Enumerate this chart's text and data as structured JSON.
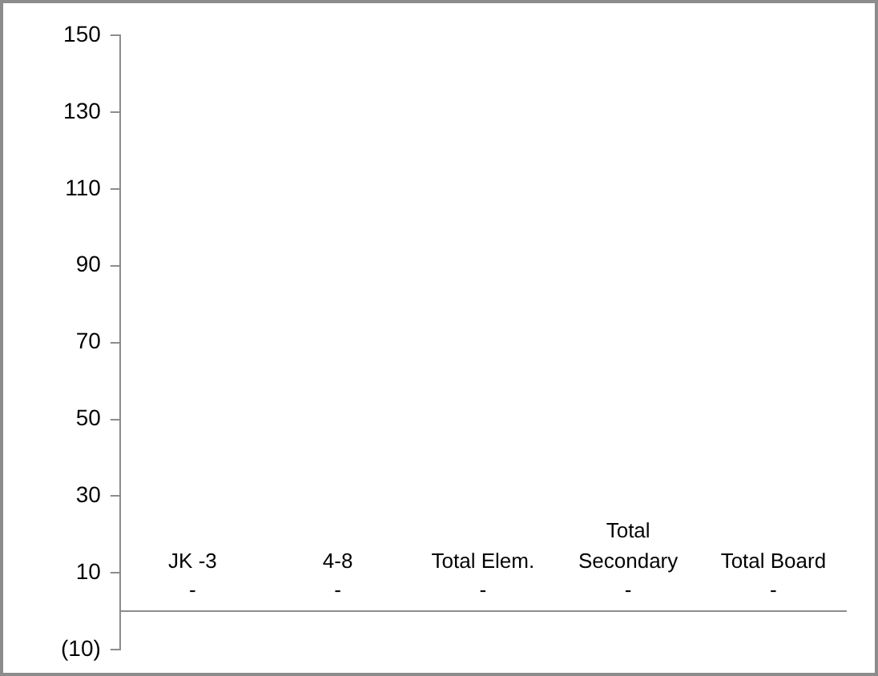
{
  "chart_data": {
    "type": "bar",
    "categories": [
      "JK -3",
      "4-8",
      "Total Elem.",
      "Total Secondary",
      "Total Board"
    ],
    "values": [
      0,
      0,
      0,
      0,
      0
    ],
    "value_labels": [
      "-",
      "-",
      "-",
      "-",
      "-"
    ],
    "ylim": [
      -10,
      150
    ],
    "yticks": [
      {
        "value": -10,
        "label": "(10)"
      },
      10,
      30,
      50,
      70,
      90,
      110,
      130,
      150
    ],
    "grid": false,
    "legend": false
  }
}
